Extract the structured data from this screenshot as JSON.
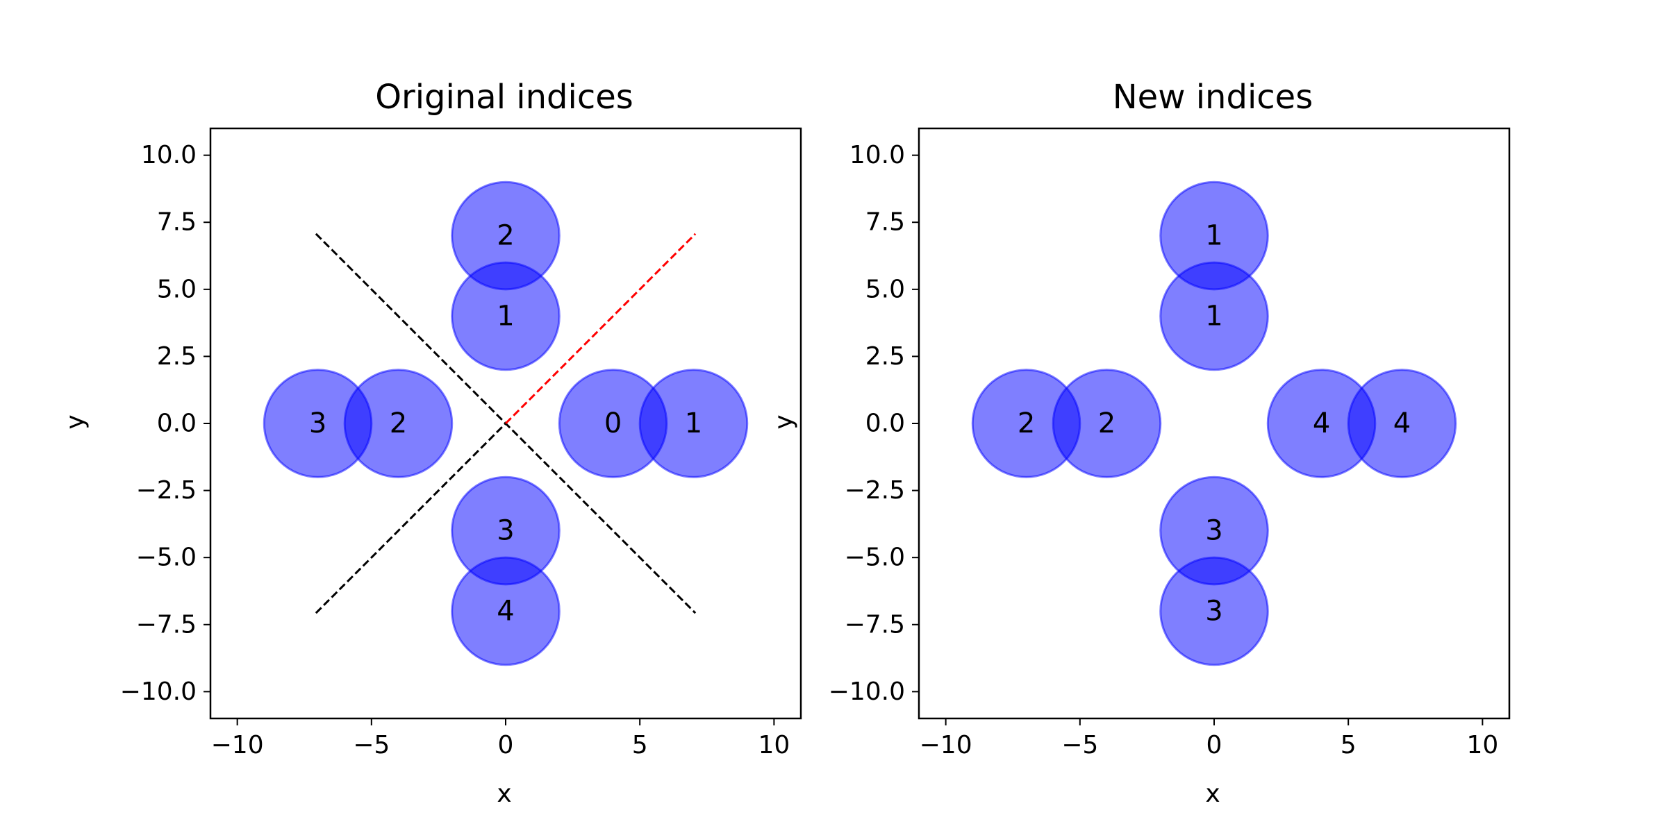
{
  "chart_data": [
    {
      "type": "scatter",
      "title": "Original indices",
      "xlabel": "x",
      "ylabel": "y",
      "xlim": [
        -11,
        11
      ],
      "ylim": [
        -11,
        11
      ],
      "xticks": [
        -10,
        -5,
        0,
        5,
        10
      ],
      "xtick_labels": [
        "−10",
        "−5",
        "0",
        "5",
        "10"
      ],
      "yticks": [
        10,
        7.5,
        5,
        2.5,
        0,
        -2.5,
        -5,
        -7.5,
        -10
      ],
      "ytick_labels": [
        "10.0",
        "7.5",
        "5.0",
        "2.5",
        "0.0",
        "−2.5",
        "−5.0",
        "−7.5",
        "−10.0"
      ],
      "grid": false,
      "circle_radius": 2,
      "circle_color": "#0000ff",
      "circle_alpha": 0.5,
      "points": [
        {
          "x": 0,
          "y": 7,
          "label": "2"
        },
        {
          "x": 0,
          "y": 4,
          "label": "1"
        },
        {
          "x": -7,
          "y": 0,
          "label": "3"
        },
        {
          "x": -4,
          "y": 0,
          "label": "2"
        },
        {
          "x": 4,
          "y": 0,
          "label": "0"
        },
        {
          "x": 7,
          "y": 0,
          "label": "1"
        },
        {
          "x": 0,
          "y": -4,
          "label": "3"
        },
        {
          "x": 0,
          "y": -7,
          "label": "4"
        }
      ],
      "lines": [
        {
          "x": [
            -7.07,
            7.07
          ],
          "y": [
            7.07,
            -7.07
          ],
          "color": "#000000",
          "style": "dashed"
        },
        {
          "x": [
            -7.07,
            0
          ],
          "y": [
            -7.07,
            0
          ],
          "color": "#000000",
          "style": "dashed"
        },
        {
          "x": [
            0,
            7.07
          ],
          "y": [
            0,
            7.07
          ],
          "color": "#ff0000",
          "style": "dashed"
        }
      ]
    },
    {
      "type": "scatter",
      "title": "New indices",
      "xlabel": "x",
      "ylabel": "y",
      "xlim": [
        -11,
        11
      ],
      "ylim": [
        -11,
        11
      ],
      "xticks": [
        -10,
        -5,
        0,
        5,
        10
      ],
      "xtick_labels": [
        "−10",
        "−5",
        "0",
        "5",
        "10"
      ],
      "yticks": [
        10,
        7.5,
        5,
        2.5,
        0,
        -2.5,
        -5,
        -7.5,
        -10
      ],
      "ytick_labels": [
        "10.0",
        "7.5",
        "5.0",
        "2.5",
        "0.0",
        "−2.5",
        "−5.0",
        "−7.5",
        "−10.0"
      ],
      "grid": false,
      "circle_radius": 2,
      "circle_color": "#0000ff",
      "circle_alpha": 0.5,
      "points": [
        {
          "x": 0,
          "y": 7,
          "label": "1"
        },
        {
          "x": 0,
          "y": 4,
          "label": "1"
        },
        {
          "x": -7,
          "y": 0,
          "label": "2"
        },
        {
          "x": -4,
          "y": 0,
          "label": "2"
        },
        {
          "x": 4,
          "y": 0,
          "label": "4"
        },
        {
          "x": 7,
          "y": 0,
          "label": "4"
        },
        {
          "x": 0,
          "y": -4,
          "label": "3"
        },
        {
          "x": 0,
          "y": -7,
          "label": "3"
        }
      ],
      "lines": []
    }
  ]
}
